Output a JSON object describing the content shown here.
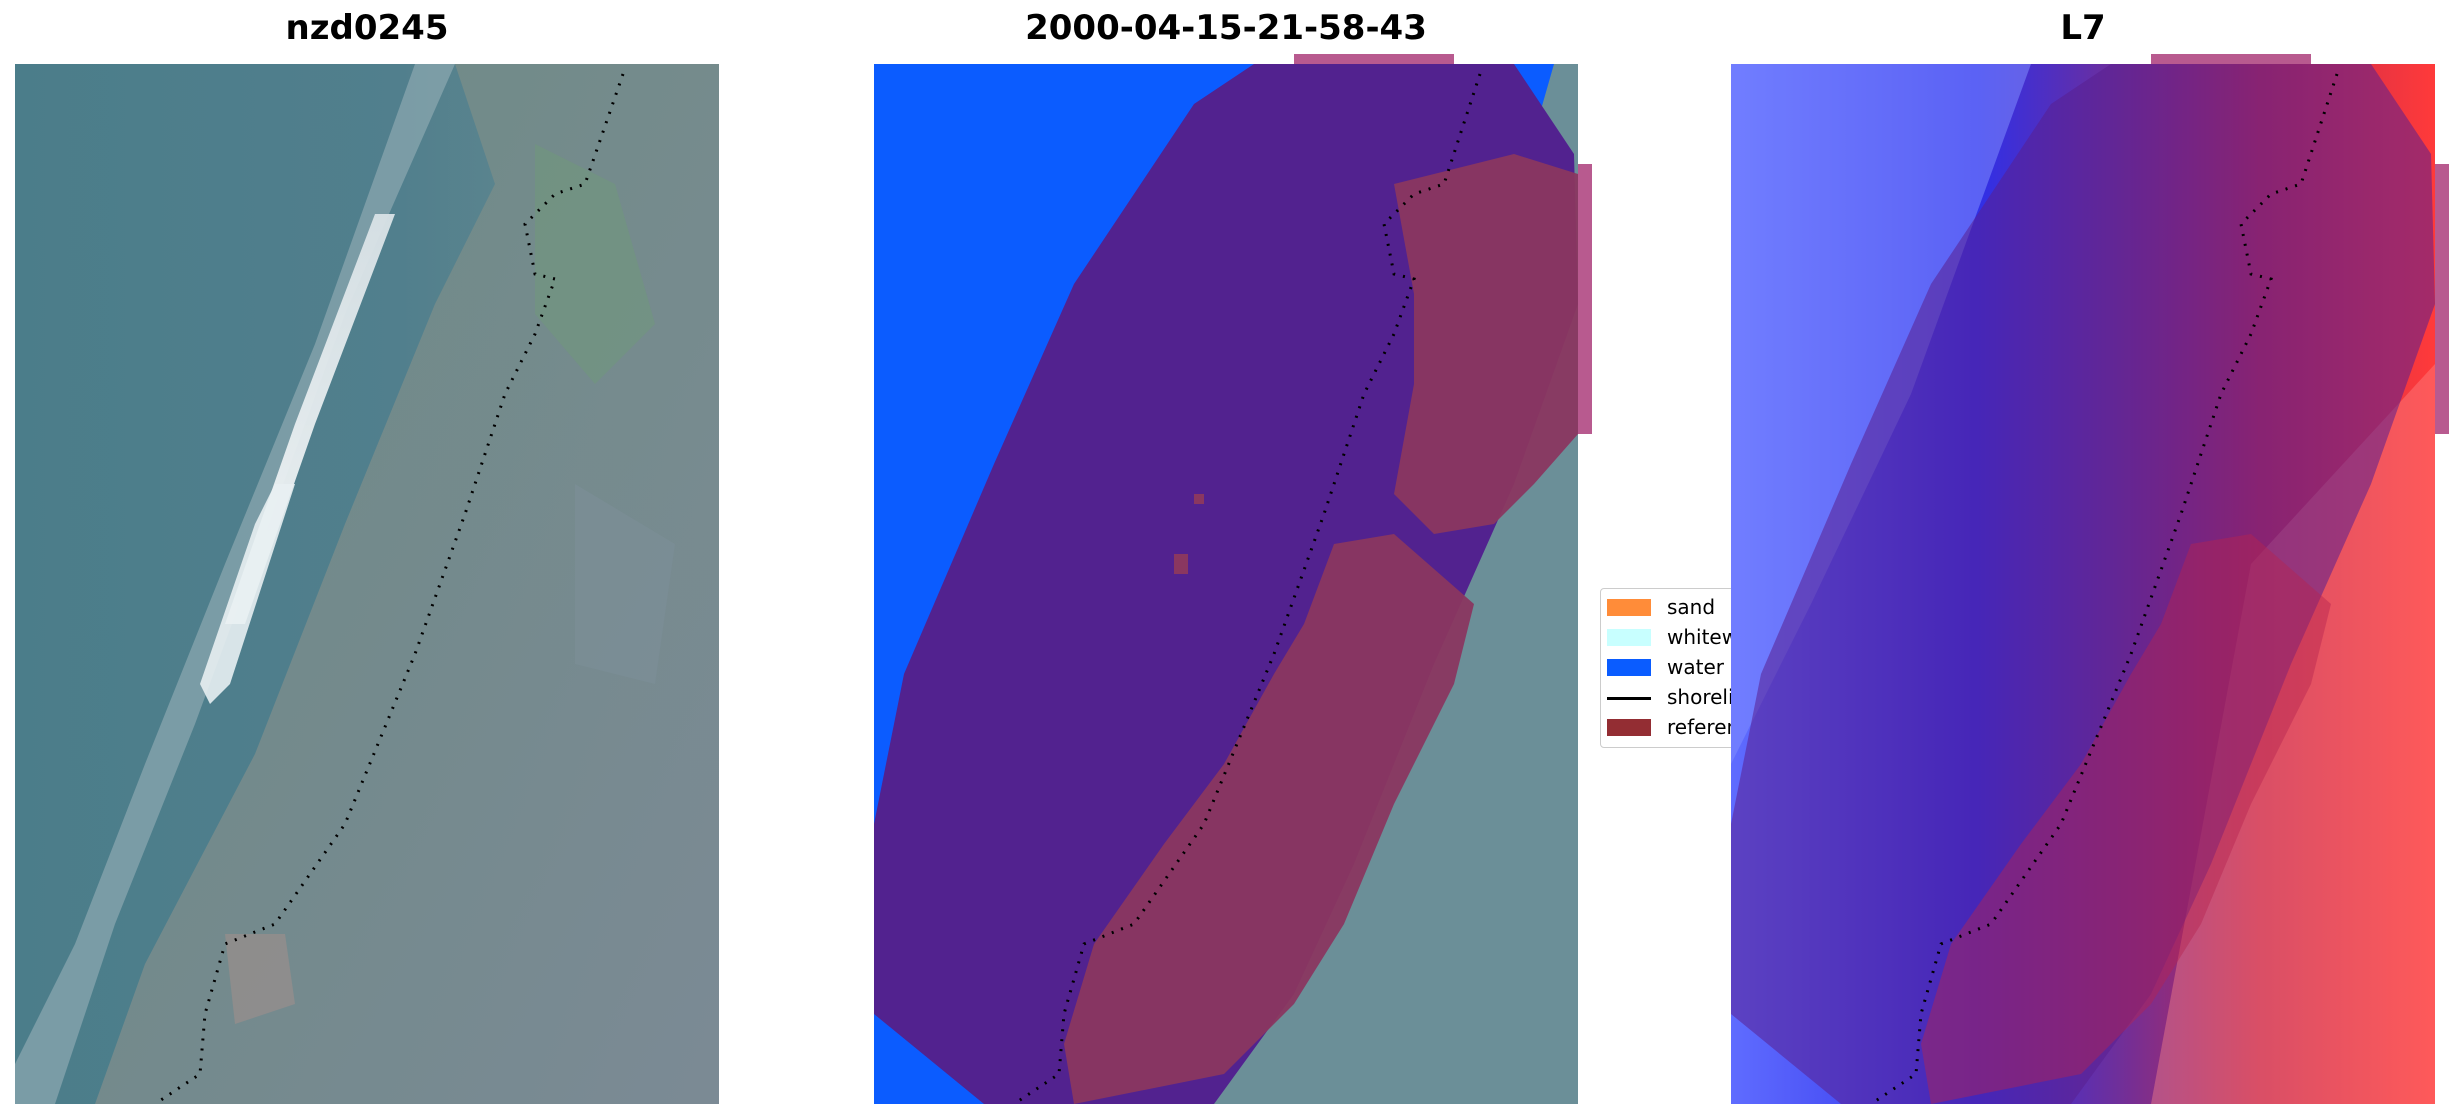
{
  "panels": [
    {
      "title": "nzd0245"
    },
    {
      "title": "2000-04-15-21-58-43"
    },
    {
      "title": "L7"
    }
  ],
  "legend": {
    "items": [
      {
        "label": "sand",
        "color": "#ff8c39",
        "kind": "patch"
      },
      {
        "label": "whitewater",
        "color": "#c8ffff",
        "kind": "patch"
      },
      {
        "label": "water",
        "color": "#0a5cff",
        "kind": "patch"
      },
      {
        "label": "shoreline",
        "color": "#000000",
        "kind": "line"
      },
      {
        "label": "reference",
        "color": "#932d33",
        "kind": "patch"
      }
    ]
  },
  "colors": {
    "classification_water": "#0b5cff",
    "buffer_overlay": "#52228f",
    "land_overlay": "#8a3760",
    "shoreline_dots": "#000000"
  }
}
